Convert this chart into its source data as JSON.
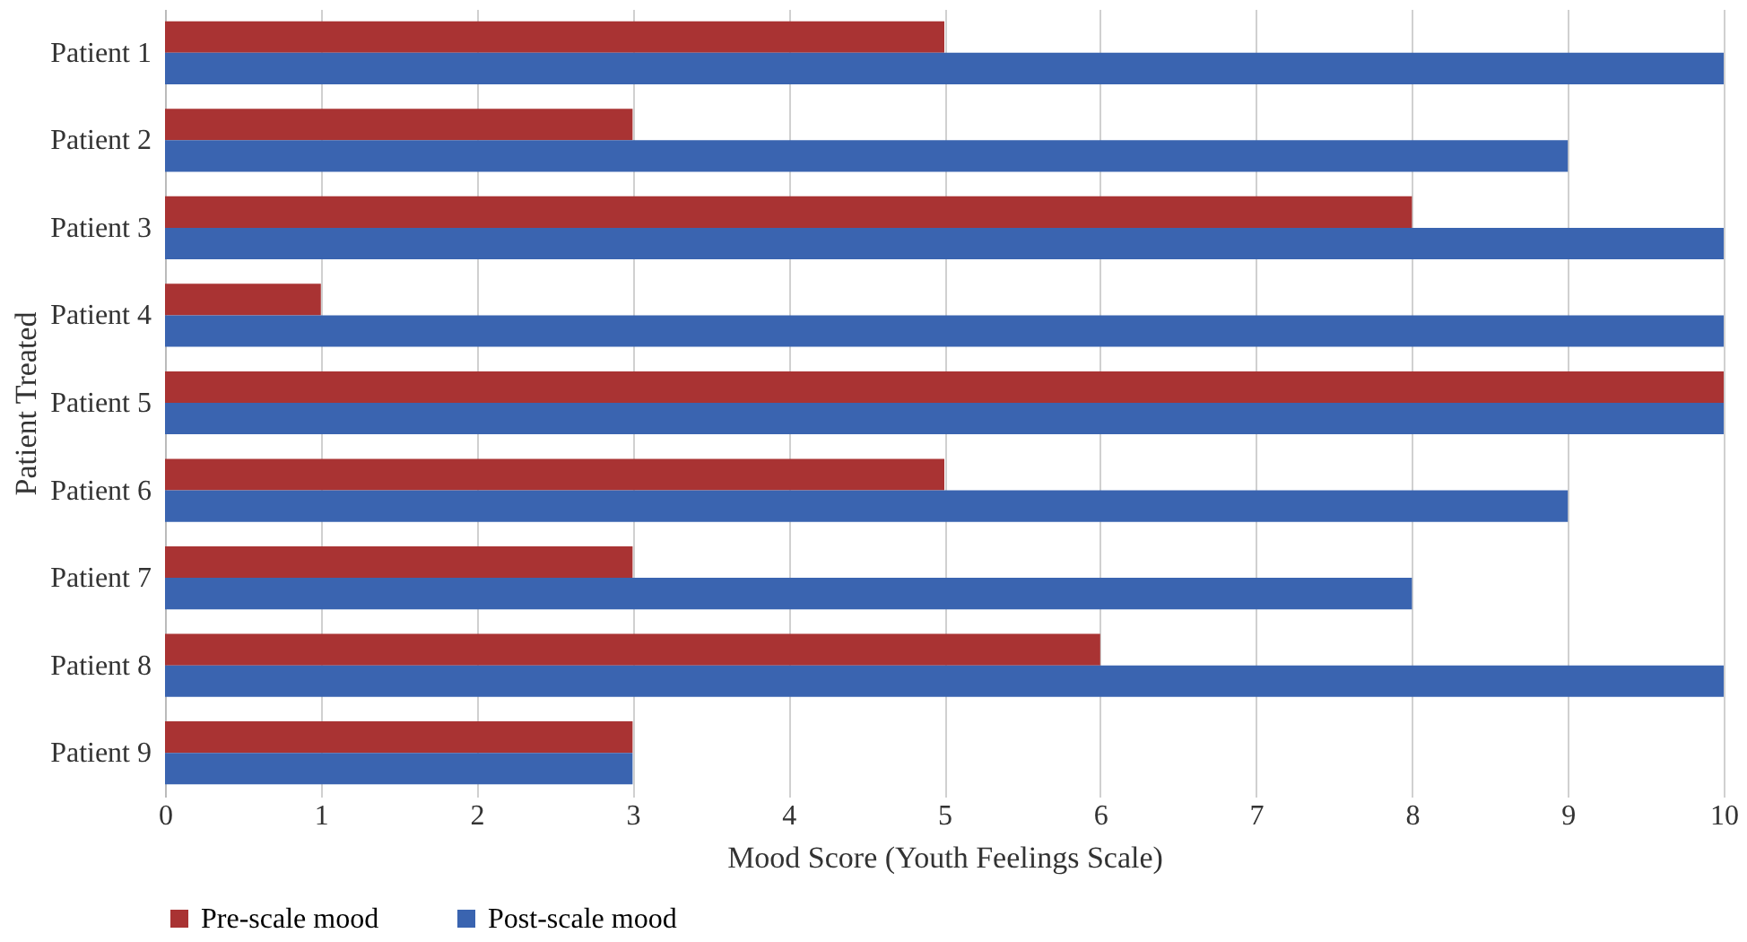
{
  "chart_data": {
    "type": "bar",
    "orientation": "horizontal",
    "xlabel": "Mood Score (Youth Feelings Scale)",
    "ylabel": "Patient Treated",
    "categories": [
      "Patient 1",
      "Patient 2",
      "Patient 3",
      "Patient 4",
      "Patient 5",
      "Patient 6",
      "Patient 7",
      "Patient 8",
      "Patient 9"
    ],
    "series": [
      {
        "name": "Pre-scale mood",
        "color": "#a93333",
        "values": [
          5,
          3,
          8,
          1,
          10,
          5,
          3,
          6,
          3
        ]
      },
      {
        "name": "Post-scale mood",
        "color": "#3a64b0",
        "values": [
          10,
          9,
          10,
          10,
          10,
          9,
          8,
          10,
          3
        ]
      }
    ],
    "xlim": [
      0,
      10
    ],
    "xticks": [
      0,
      1,
      2,
      3,
      4,
      5,
      6,
      7,
      8,
      9,
      10
    ],
    "grid": "x",
    "legend": "bottom"
  }
}
